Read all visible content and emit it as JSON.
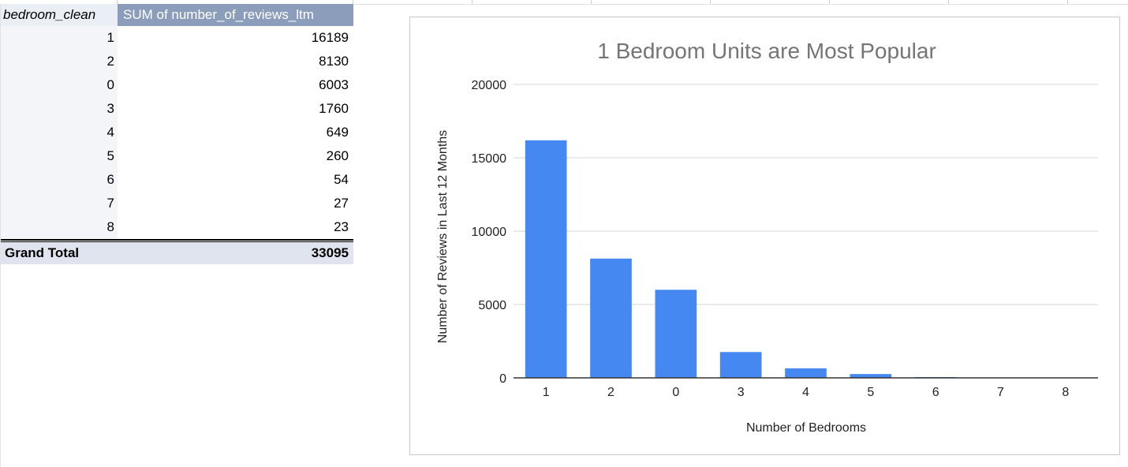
{
  "pivot": {
    "header": {
      "col1": "bedroom_clean",
      "col2": "SUM of number_of_reviews_ltm"
    },
    "rows": [
      {
        "bedroom": "1",
        "reviews": "16189"
      },
      {
        "bedroom": "2",
        "reviews": "8130"
      },
      {
        "bedroom": "0",
        "reviews": "6003"
      },
      {
        "bedroom": "3",
        "reviews": "1760"
      },
      {
        "bedroom": "4",
        "reviews": "649"
      },
      {
        "bedroom": "5",
        "reviews": "260"
      },
      {
        "bedroom": "6",
        "reviews": "54"
      },
      {
        "bedroom": "7",
        "reviews": "27"
      },
      {
        "bedroom": "8",
        "reviews": "23"
      }
    ],
    "total": {
      "label": "Grand Total",
      "value": "33095"
    }
  },
  "chart_data": {
    "type": "bar",
    "title": "1 Bedroom Units are Most Popular",
    "xlabel": "Number of Bedrooms",
    "ylabel": "Number of Reviews in Last 12 Months",
    "categories": [
      "1",
      "2",
      "0",
      "3",
      "4",
      "5",
      "6",
      "7",
      "8"
    ],
    "values": [
      16189,
      8130,
      6003,
      1760,
      649,
      260,
      54,
      27,
      23
    ],
    "ylim": [
      0,
      20000
    ],
    "yticks": [
      0,
      5000,
      10000,
      15000,
      20000
    ],
    "grid": true,
    "bar_color": "#4688f1"
  }
}
